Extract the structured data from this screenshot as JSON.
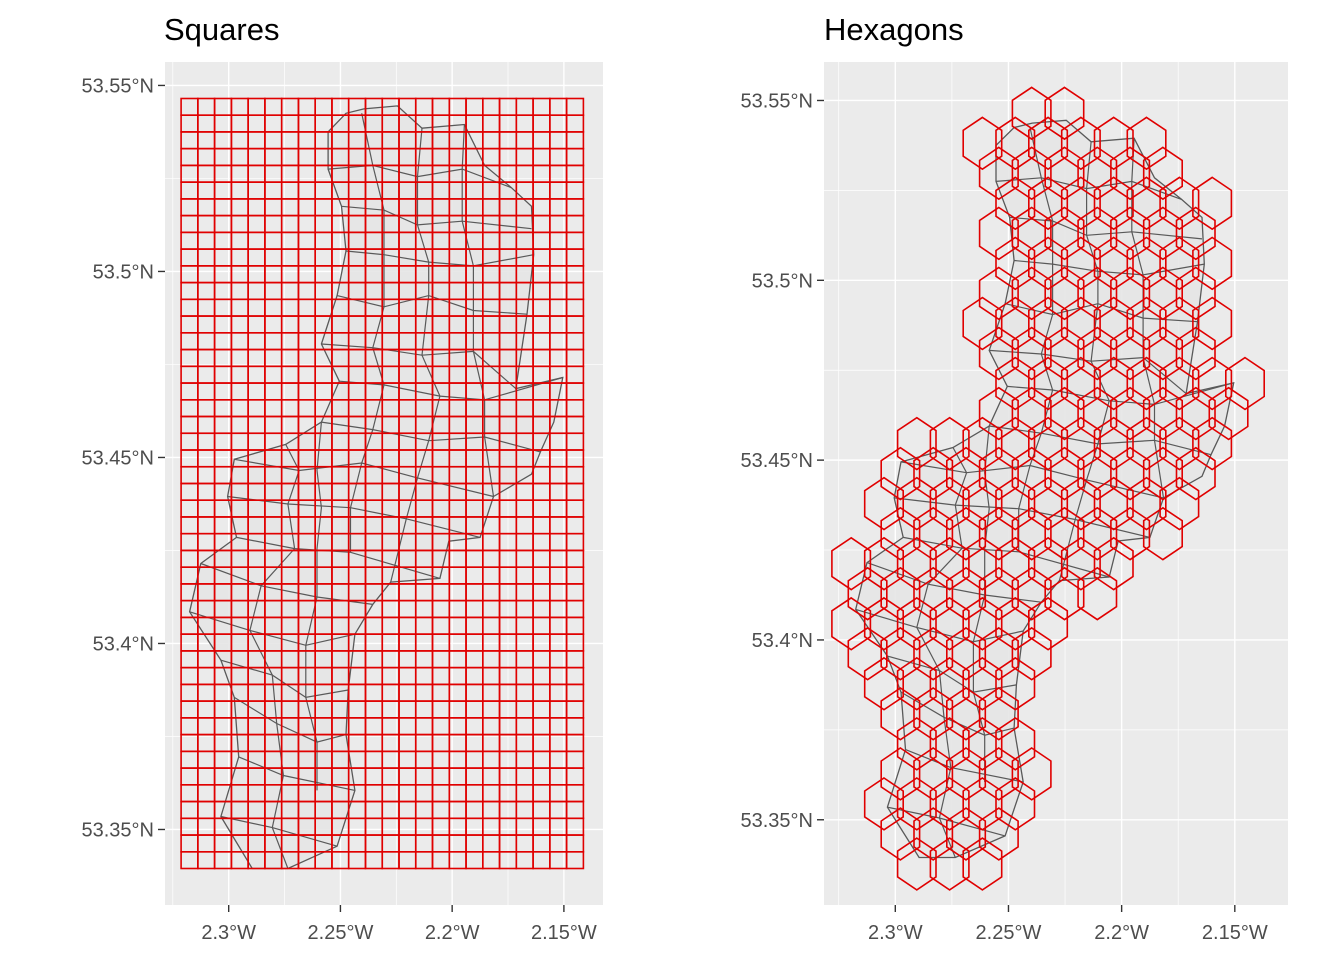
{
  "figure": {
    "colors": {
      "grid_cell": "#e00000",
      "region_border": "#595959",
      "region_fill": "#e6e6e6",
      "panel_bg": "#ebebeb"
    }
  },
  "panels": [
    {
      "key": "left",
      "title": "Squares",
      "grid_type": "square",
      "cell_size_deg": {
        "lon": 0.0075,
        "lat": 0.0045
      },
      "grid_extent": {
        "lon": [
          -2.3213,
          -2.1413
        ],
        "lat": [
          53.3395,
          53.5465
        ]
      },
      "lon_range": [
        -2.3285,
        -2.1325
      ],
      "lat_range": [
        53.3297,
        53.5563
      ],
      "x_ticks": [
        {
          "value": -2.3,
          "label": "2.3°W"
        },
        {
          "value": -2.25,
          "label": "2.25°W"
        },
        {
          "value": -2.2,
          "label": "2.2°W"
        },
        {
          "value": -2.15,
          "label": "2.15°W"
        }
      ],
      "y_ticks": [
        {
          "value": 53.35,
          "label": "53.35°N"
        },
        {
          "value": 53.4,
          "label": "53.4°N"
        },
        {
          "value": 53.45,
          "label": "53.45°N"
        },
        {
          "value": 53.5,
          "label": "53.5°N"
        },
        {
          "value": 53.55,
          "label": "53.55°N"
        }
      ]
    },
    {
      "key": "right",
      "title": "Hexagons",
      "grid_type": "hexagon",
      "hex": {
        "origin_lon": -2.2905,
        "origin_lat": 53.4045,
        "dlon": 0.0145,
        "dlat": 0.00835
      },
      "lon_range": [
        -2.3315,
        -2.1265
      ],
      "lat_range": [
        53.3263,
        53.5607
      ],
      "x_ticks": [
        {
          "value": -2.3,
          "label": "2.3°W"
        },
        {
          "value": -2.25,
          "label": "2.25°W"
        },
        {
          "value": -2.2,
          "label": "2.2°W"
        },
        {
          "value": -2.15,
          "label": "2.15°W"
        }
      ],
      "y_ticks": [
        {
          "value": 53.35,
          "label": "53.35°N"
        },
        {
          "value": 53.4,
          "label": "53.4°N"
        },
        {
          "value": 53.45,
          "label": "53.45°N"
        },
        {
          "value": 53.5,
          "label": "53.5°N"
        },
        {
          "value": 53.55,
          "label": "53.55°N"
        }
      ]
    }
  ],
  "study_area_outline": [
    [
      -2.2395,
      53.5437
    ],
    [
      -2.2245,
      53.5445
    ],
    [
      -2.2135,
      53.5385
    ],
    [
      -2.1945,
      53.5395
    ],
    [
      -2.1855,
      53.5285
    ],
    [
      -2.1735,
      53.5225
    ],
    [
      -2.1645,
      53.5175
    ],
    [
      -2.1635,
      53.5045
    ],
    [
      -2.1665,
      53.4885
    ],
    [
      -2.1715,
      53.4685
    ],
    [
      -2.1505,
      53.4715
    ],
    [
      -2.1545,
      53.4595
    ],
    [
      -2.1605,
      53.4515
    ],
    [
      -2.1645,
      53.4455
    ],
    [
      -2.1815,
      53.4395
    ],
    [
      -2.1875,
      53.4285
    ],
    [
      -2.2015,
      53.4275
    ],
    [
      -2.2055,
      53.4175
    ],
    [
      -2.2275,
      53.4165
    ],
    [
      -2.2355,
      53.4105
    ],
    [
      -2.2435,
      53.4025
    ],
    [
      -2.2465,
      53.3875
    ],
    [
      -2.2475,
      53.3755
    ],
    [
      -2.2435,
      53.3605
    ],
    [
      -2.2515,
      53.3455
    ],
    [
      -2.2735,
      53.3395
    ],
    [
      -2.2895,
      53.3395
    ],
    [
      -2.3035,
      53.3535
    ],
    [
      -2.2955,
      53.3695
    ],
    [
      -2.2975,
      53.3855
    ],
    [
      -2.3035,
      53.3955
    ],
    [
      -2.3175,
      53.4085
    ],
    [
      -2.3125,
      53.4215
    ],
    [
      -2.2965,
      53.4285
    ],
    [
      -2.3005,
      53.4395
    ],
    [
      -2.2975,
      53.4495
    ],
    [
      -2.2745,
      53.4535
    ],
    [
      -2.2585,
      53.4595
    ],
    [
      -2.2505,
      53.4705
    ],
    [
      -2.2585,
      53.4805
    ],
    [
      -2.2515,
      53.4935
    ],
    [
      -2.2475,
      53.5055
    ],
    [
      -2.2495,
      53.5175
    ],
    [
      -2.2555,
      53.5275
    ],
    [
      -2.2555,
      53.5375
    ],
    [
      -2.2475,
      53.5425
    ]
  ],
  "internal_boundaries": [
    [
      [
        -2.2555,
        53.5275
      ],
      [
        -2.2355,
        53.5285
      ],
      [
        -2.2155,
        53.5255
      ],
      [
        -2.1955,
        53.5275
      ],
      [
        -2.1735,
        53.5225
      ]
    ],
    [
      [
        -2.2495,
        53.5175
      ],
      [
        -2.2305,
        53.5165
      ],
      [
        -2.2155,
        53.5125
      ],
      [
        -2.1955,
        53.5135
      ],
      [
        -2.1645,
        53.5115
      ]
    ],
    [
      [
        -2.2475,
        53.5055
      ],
      [
        -2.2305,
        53.5045
      ],
      [
        -2.2105,
        53.5025
      ],
      [
        -2.1905,
        53.5015
      ],
      [
        -2.1635,
        53.5045
      ]
    ],
    [
      [
        -2.2515,
        53.4935
      ],
      [
        -2.2305,
        53.4905
      ],
      [
        -2.2105,
        53.4935
      ],
      [
        -2.1905,
        53.4895
      ],
      [
        -2.1665,
        53.4885
      ]
    ],
    [
      [
        -2.2585,
        53.4805
      ],
      [
        -2.2355,
        53.4795
      ],
      [
        -2.2135,
        53.4775
      ],
      [
        -2.1905,
        53.4785
      ],
      [
        -2.1715,
        53.4685
      ]
    ],
    [
      [
        -2.2505,
        53.4705
      ],
      [
        -2.2305,
        53.4695
      ],
      [
        -2.2055,
        53.4665
      ],
      [
        -2.1855,
        53.4655
      ],
      [
        -2.1505,
        53.4715
      ]
    ],
    [
      [
        -2.2585,
        53.4595
      ],
      [
        -2.2355,
        53.4575
      ],
      [
        -2.2105,
        53.4545
      ],
      [
        -2.1855,
        53.4555
      ],
      [
        -2.1605,
        53.4515
      ]
    ],
    [
      [
        -2.2975,
        53.4495
      ],
      [
        -2.2685,
        53.4465
      ],
      [
        -2.2405,
        53.4485
      ],
      [
        -2.2155,
        53.4445
      ],
      [
        -2.1815,
        53.4395
      ]
    ],
    [
      [
        -2.3005,
        53.4395
      ],
      [
        -2.2735,
        53.4375
      ],
      [
        -2.2455,
        53.4365
      ],
      [
        -2.2205,
        53.4335
      ],
      [
        -2.1875,
        53.4285
      ]
    ],
    [
      [
        -2.2965,
        53.4285
      ],
      [
        -2.2705,
        53.4255
      ],
      [
        -2.2455,
        53.4245
      ],
      [
        -2.2055,
        53.4175
      ]
    ],
    [
      [
        -2.3125,
        53.4215
      ],
      [
        -2.2855,
        53.4155
      ],
      [
        -2.2605,
        53.4125
      ],
      [
        -2.2355,
        53.4105
      ]
    ],
    [
      [
        -2.3175,
        53.4085
      ],
      [
        -2.2905,
        53.4035
      ],
      [
        -2.2655,
        53.3995
      ],
      [
        -2.2435,
        53.4025
      ]
    ],
    [
      [
        -2.3035,
        53.3955
      ],
      [
        -2.2805,
        53.3915
      ],
      [
        -2.2655,
        53.3855
      ],
      [
        -2.2465,
        53.3875
      ]
    ],
    [
      [
        -2.2975,
        53.3855
      ],
      [
        -2.2785,
        53.3785
      ],
      [
        -2.2605,
        53.3735
      ],
      [
        -2.2475,
        53.3755
      ]
    ],
    [
      [
        -2.2955,
        53.3695
      ],
      [
        -2.2755,
        53.3645
      ],
      [
        -2.2435,
        53.3605
      ]
    ],
    [
      [
        -2.3035,
        53.3535
      ],
      [
        -2.2805,
        53.3505
      ],
      [
        -2.2515,
        53.3455
      ]
    ],
    [
      [
        -2.2405,
        53.5425
      ],
      [
        -2.2355,
        53.5285
      ],
      [
        -2.2305,
        53.5165
      ],
      [
        -2.2305,
        53.5045
      ],
      [
        -2.2305,
        53.4905
      ],
      [
        -2.2355,
        53.4795
      ],
      [
        -2.2305,
        53.4695
      ],
      [
        -2.2355,
        53.4575
      ],
      [
        -2.2405,
        53.4485
      ],
      [
        -2.2455,
        53.4365
      ],
      [
        -2.2455,
        53.4245
      ]
    ],
    [
      [
        -2.2135,
        53.5385
      ],
      [
        -2.2155,
        53.5255
      ],
      [
        -2.2155,
        53.5125
      ],
      [
        -2.2105,
        53.5025
      ],
      [
        -2.2105,
        53.4935
      ],
      [
        -2.2135,
        53.4775
      ],
      [
        -2.2055,
        53.4665
      ],
      [
        -2.2105,
        53.4545
      ],
      [
        -2.2155,
        53.4445
      ],
      [
        -2.2205,
        53.4335
      ],
      [
        -2.2275,
        53.4165
      ]
    ],
    [
      [
        -2.1945,
        53.5395
      ],
      [
        -2.1955,
        53.5275
      ],
      [
        -2.1955,
        53.5135
      ],
      [
        -2.1905,
        53.5015
      ],
      [
        -2.1905,
        53.4895
      ],
      [
        -2.1905,
        53.4785
      ],
      [
        -2.1855,
        53.4655
      ],
      [
        -2.1855,
        53.4555
      ],
      [
        -2.1815,
        53.4395
      ]
    ],
    [
      [
        -2.2745,
        53.4535
      ],
      [
        -2.2685,
        53.4465
      ],
      [
        -2.2735,
        53.4375
      ],
      [
        -2.2705,
        53.4255
      ],
      [
        -2.2855,
        53.4155
      ],
      [
        -2.2905,
        53.4035
      ],
      [
        -2.2805,
        53.3915
      ],
      [
        -2.2785,
        53.3785
      ],
      [
        -2.2755,
        53.3645
      ],
      [
        -2.2805,
        53.3505
      ],
      [
        -2.2735,
        53.3395
      ]
    ],
    [
      [
        -2.2585,
        53.4595
      ],
      [
        -2.2605,
        53.4465
      ],
      [
        -2.2585,
        53.4365
      ],
      [
        -2.2605,
        53.4255
      ],
      [
        -2.2605,
        53.4125
      ],
      [
        -2.2655,
        53.3995
      ],
      [
        -2.2655,
        53.3855
      ],
      [
        -2.2605,
        53.3735
      ],
      [
        -2.2605,
        53.3605
      ]
    ]
  ]
}
